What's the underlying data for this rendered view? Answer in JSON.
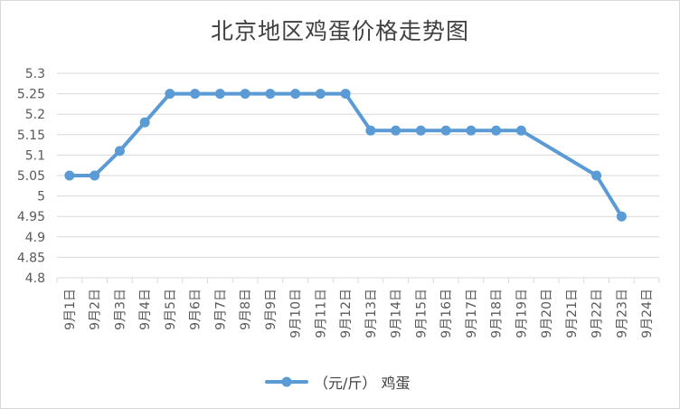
{
  "chart_data": {
    "type": "line",
    "title": "北京地区鸡蛋价格走势图",
    "categories": [
      "9月1日",
      "9月2日",
      "9月3日",
      "9月4日",
      "9月5日",
      "9月6日",
      "9月7日",
      "9月8日",
      "9月9日",
      "9月10日",
      "9月11日",
      "9月12日",
      "9月13日",
      "9月14日",
      "9月15日",
      "9月16日",
      "9月17日",
      "9月18日",
      "9月19日",
      "9月20日",
      "9月21日",
      "9月22日",
      "9月23日",
      "9月24日"
    ],
    "series": [
      {
        "name": "（元/斤） 鸡蛋",
        "values": [
          5.05,
          5.05,
          5.11,
          5.18,
          5.25,
          5.25,
          5.25,
          5.25,
          5.25,
          5.25,
          5.25,
          5.25,
          5.16,
          5.16,
          5.16,
          5.16,
          5.16,
          5.16,
          5.16,
          null,
          null,
          5.05,
          4.95,
          null
        ],
        "color": "#5b9bd5"
      }
    ],
    "xlabel": "",
    "ylabel": "",
    "ylim": [
      4.8,
      5.3
    ],
    "yticks": [
      "4.8",
      "4.85",
      "4.9",
      "4.95",
      "5",
      "5.05",
      "5.1",
      "5.15",
      "5.2",
      "5.25",
      "5.3"
    ],
    "grid": true,
    "legend_position": "bottom"
  }
}
